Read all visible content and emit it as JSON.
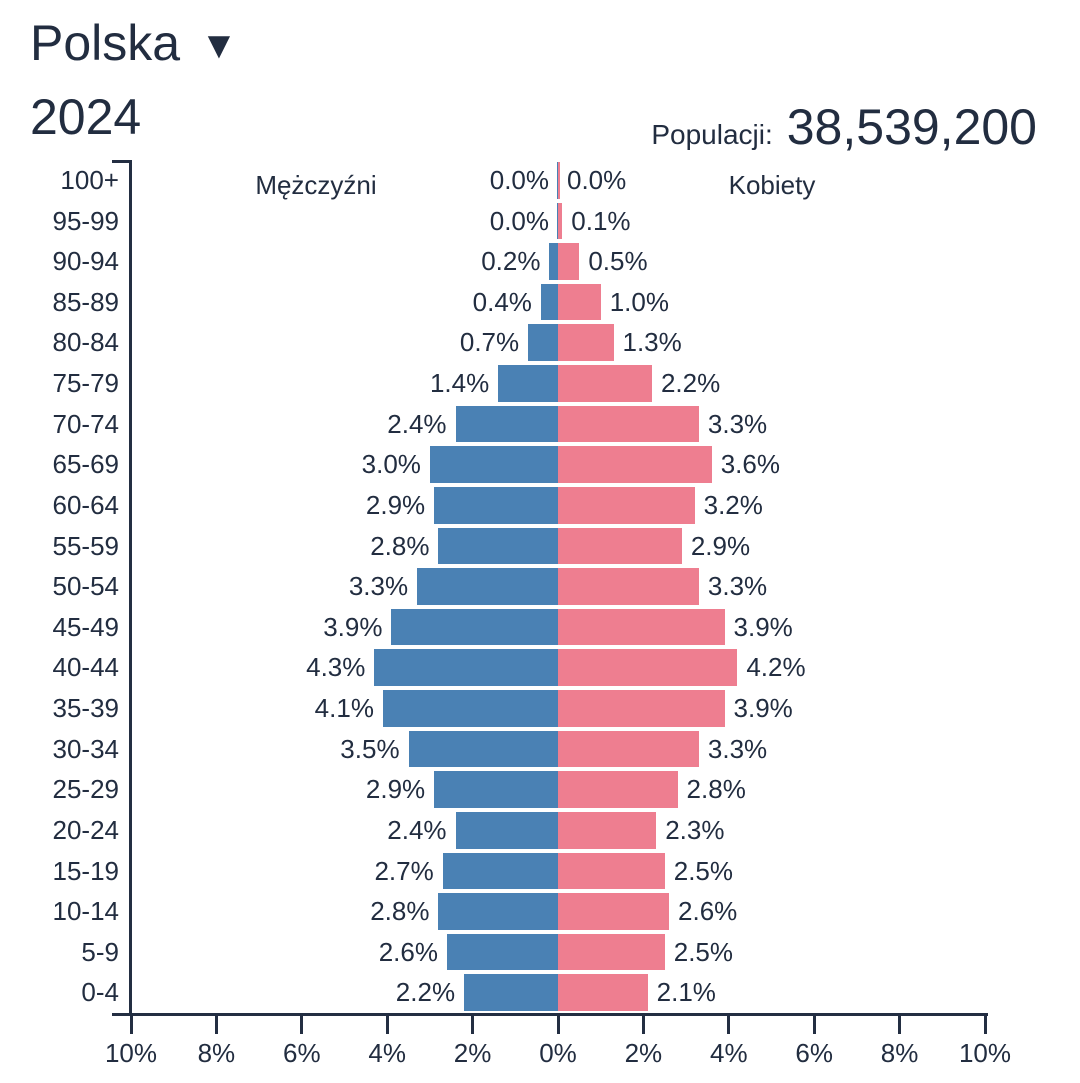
{
  "header": {
    "country": "Polska",
    "year": "2024",
    "population_label": "Populacji:",
    "population_value": "38,539,200"
  },
  "chart_data": {
    "type": "bar",
    "variant": "population_pyramid",
    "title": "Polska 2024",
    "unit": "%",
    "categories_top_to_bottom": [
      "100+",
      "95-99",
      "90-94",
      "85-89",
      "80-84",
      "75-79",
      "70-74",
      "65-69",
      "60-64",
      "55-59",
      "50-54",
      "45-49",
      "40-44",
      "35-39",
      "30-34",
      "25-29",
      "20-24",
      "15-19",
      "10-14",
      "5-9",
      "0-4"
    ],
    "series": [
      {
        "name": "Mężczyźni",
        "side": "left",
        "color": "#4a81b4",
        "values": [
          0.0,
          0.0,
          0.2,
          0.4,
          0.7,
          1.4,
          2.4,
          3.0,
          2.9,
          2.8,
          3.3,
          3.9,
          4.3,
          4.1,
          3.5,
          2.9,
          2.4,
          2.7,
          2.8,
          2.6,
          2.2
        ]
      },
      {
        "name": "Kobiety",
        "side": "right",
        "color": "#ee7e90",
        "values": [
          0.0,
          0.1,
          0.5,
          1.0,
          1.3,
          2.2,
          3.3,
          3.6,
          3.2,
          2.9,
          3.3,
          3.9,
          4.2,
          3.9,
          3.3,
          2.8,
          2.3,
          2.5,
          2.6,
          2.5,
          2.1
        ]
      }
    ],
    "left_group_label": "Mężczyźni",
    "right_group_label": "Kobiety",
    "x_axis": {
      "tick_values": [
        -10,
        -8,
        -6,
        -4,
        -2,
        0,
        2,
        4,
        6,
        8,
        10
      ],
      "tick_labels": [
        "10%",
        "8%",
        "6%",
        "4%",
        "2%",
        "0%",
        "2%",
        "4%",
        "6%",
        "8%",
        "10%"
      ],
      "range": [
        -10,
        10
      ],
      "grid": false
    },
    "legend_position": "top-inside"
  },
  "colors": {
    "male_bar": "#4a81b4",
    "female_bar": "#ee7e90",
    "text": "#222d40",
    "axis": "#232e42",
    "background": "#ffffff"
  }
}
